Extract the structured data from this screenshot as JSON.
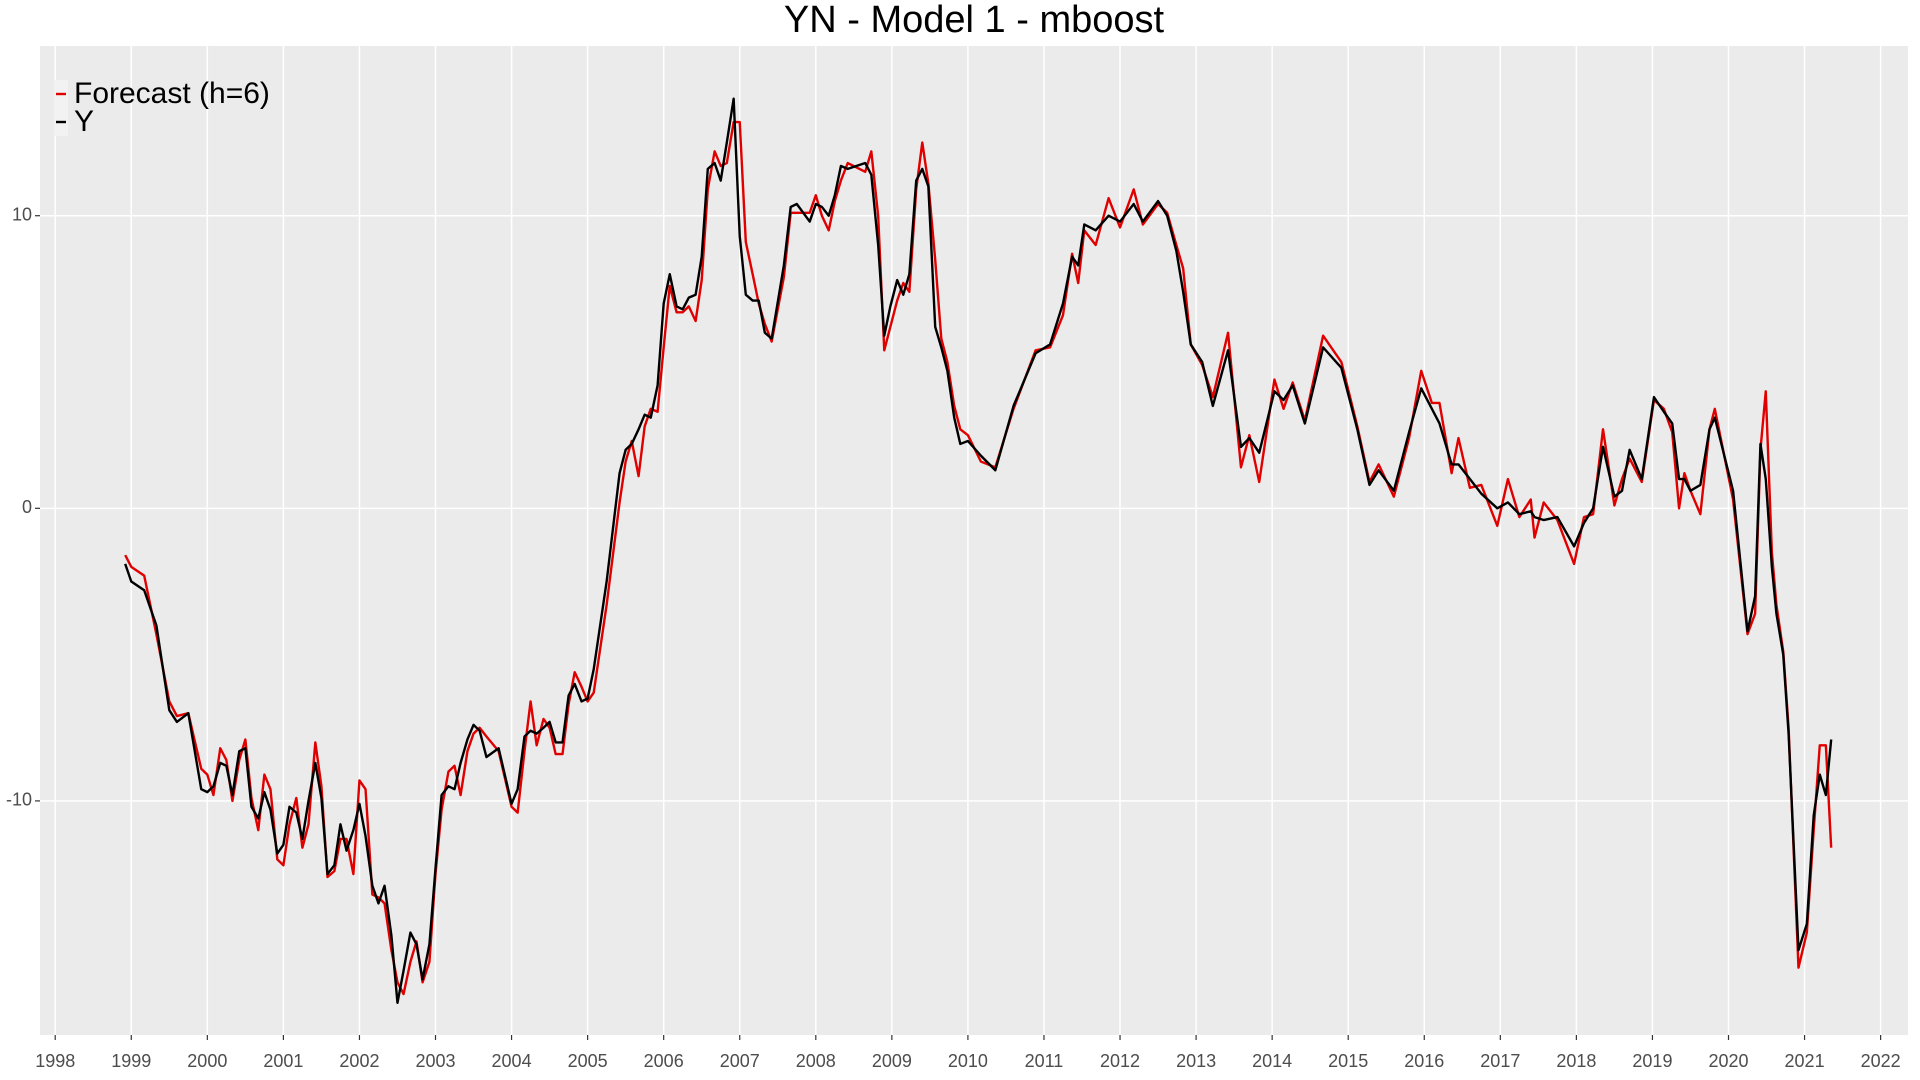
{
  "chart_data": {
    "type": "line",
    "title": "YN - Model 1 - mboost",
    "grid": true,
    "legend": "top-left",
    "background": "#ebebeb",
    "xlim": [
      1997.8,
      2022.36
    ],
    "xticks": [
      1998,
      1999,
      2000,
      2001,
      2002,
      2003,
      2004,
      2005,
      2006,
      2007,
      2008,
      2009,
      2010,
      2011,
      2012,
      2013,
      2014,
      2015,
      2016,
      2017,
      2018,
      2019,
      2020,
      2021,
      2022
    ],
    "ylim": [
      -18,
      15.8
    ],
    "yticks": [
      -10,
      0,
      10
    ],
    "x": [
      1998.92,
      1999.0,
      1999.17,
      1999.33,
      1999.5,
      1999.6,
      1999.75,
      1999.92,
      2000.0,
      2000.08,
      2000.17,
      2000.25,
      2000.33,
      2000.42,
      2000.5,
      2000.58,
      2000.67,
      2000.75,
      2000.83,
      2000.92,
      2001.0,
      2001.08,
      2001.17,
      2001.25,
      2001.33,
      2001.42,
      2001.5,
      2001.58,
      2001.67,
      2001.75,
      2001.83,
      2001.92,
      2002.0,
      2002.08,
      2002.17,
      2002.25,
      2002.33,
      2002.42,
      2002.5,
      2002.58,
      2002.67,
      2002.75,
      2002.83,
      2002.92,
      2003.0,
      2003.08,
      2003.17,
      2003.25,
      2003.33,
      2003.42,
      2003.5,
      2003.58,
      2003.67,
      2003.83,
      2004.0,
      2004.08,
      2004.17,
      2004.25,
      2004.33,
      2004.42,
      2004.5,
      2004.58,
      2004.67,
      2004.75,
      2004.83,
      2004.92,
      2005.0,
      2005.08,
      2005.25,
      2005.42,
      2005.5,
      2005.58,
      2005.67,
      2005.75,
      2005.83,
      2005.92,
      2006.0,
      2006.08,
      2006.17,
      2006.25,
      2006.33,
      2006.42,
      2006.5,
      2006.58,
      2006.67,
      2006.75,
      2006.83,
      2006.92,
      2007.0,
      2007.08,
      2007.17,
      2007.25,
      2007.33,
      2007.42,
      2007.58,
      2007.67,
      2007.75,
      2007.92,
      2008.0,
      2008.08,
      2008.17,
      2008.25,
      2008.33,
      2008.42,
      2008.65,
      2008.73,
      2008.82,
      2008.9,
      2008.98,
      2009.07,
      2009.15,
      2009.23,
      2009.32,
      2009.4,
      2009.48,
      2009.57,
      2009.65,
      2009.73,
      2009.82,
      2009.9,
      2010.0,
      2010.17,
      2010.36,
      2010.6,
      2010.89,
      2011.08,
      2011.25,
      2011.37,
      2011.45,
      2011.53,
      2011.68,
      2011.85,
      2012.0,
      2012.18,
      2012.3,
      2012.5,
      2012.62,
      2012.74,
      2012.83,
      2012.93,
      2013.08,
      2013.22,
      2013.42,
      2013.59,
      2013.7,
      2013.83,
      2014.03,
      2014.15,
      2014.27,
      2014.43,
      2014.67,
      2014.91,
      2015.12,
      2015.28,
      2015.4,
      2015.6,
      2015.8,
      2015.96,
      2016.1,
      2016.2,
      2016.36,
      2016.45,
      2016.6,
      2016.75,
      2016.96,
      2017.1,
      2017.25,
      2017.4,
      2017.45,
      2017.57,
      2017.75,
      2017.97,
      2018.1,
      2018.22,
      2018.35,
      2018.5,
      2018.6,
      2018.7,
      2018.86,
      2019.02,
      2019.15,
      2019.26,
      2019.35,
      2019.42,
      2019.5,
      2019.63,
      2019.75,
      2019.82,
      2020.06,
      2020.25,
      2020.35,
      2020.42,
      2020.49,
      2020.57,
      2020.63,
      2020.72,
      2020.79,
      2020.92,
      2021.03,
      2021.12,
      2021.2,
      2021.28,
      2021.35
    ],
    "series": [
      {
        "name": "Forecast (h=6)",
        "color": "#e00000",
        "values": [
          -1.6,
          -2.0,
          -2.3,
          -4.3,
          -6.6,
          -7.1,
          -7.0,
          -8.9,
          -9.1,
          -9.8,
          -8.2,
          -8.6,
          -10.0,
          -8.6,
          -7.9,
          -9.9,
          -11.0,
          -9.1,
          -9.6,
          -12.0,
          -12.2,
          -10.8,
          -9.9,
          -11.6,
          -10.8,
          -8.0,
          -9.5,
          -12.6,
          -12.4,
          -11.3,
          -11.3,
          -12.5,
          -9.3,
          -9.6,
          -13.2,
          -13.3,
          -13.5,
          -15.1,
          -16.2,
          -16.6,
          -15.5,
          -14.8,
          -16.2,
          -15.5,
          -12.5,
          -10.3,
          -9.0,
          -8.8,
          -9.8,
          -8.3,
          -7.7,
          -7.5,
          -7.8,
          -8.3,
          -10.2,
          -10.4,
          -8.3,
          -6.6,
          -8.1,
          -7.2,
          -7.5,
          -8.4,
          -8.4,
          -6.7,
          -5.6,
          -6.1,
          -6.6,
          -6.3,
          -3.3,
          0.2,
          1.6,
          2.3,
          1.1,
          2.8,
          3.4,
          3.3,
          5.5,
          7.6,
          6.7,
          6.7,
          6.9,
          6.4,
          7.8,
          10.9,
          12.2,
          11.7,
          11.8,
          13.2,
          13.2,
          9.1,
          8.0,
          7.0,
          6.3,
          5.7,
          7.9,
          10.1,
          10.1,
          10.1,
          10.7,
          10.0,
          9.5,
          10.5,
          11.2,
          11.8,
          11.5,
          12.2,
          10.0,
          5.4,
          6.2,
          7.1,
          7.7,
          7.4,
          10.9,
          12.5,
          11.1,
          8.5,
          5.8,
          5.0,
          3.5,
          2.7,
          2.5,
          1.6,
          1.4,
          3.4,
          5.4,
          5.5,
          6.6,
          8.7,
          7.7,
          9.5,
          9.0,
          10.6,
          9.6,
          10.9,
          9.7,
          10.4,
          10.1,
          9.0,
          8.2,
          5.6,
          4.9,
          3.8,
          6.0,
          1.4,
          2.5,
          0.9,
          4.4,
          3.4,
          4.3,
          3.0,
          5.9,
          5.0,
          2.8,
          0.9,
          1.5,
          0.4,
          2.4,
          4.7,
          3.6,
          3.6,
          1.2,
          2.4,
          0.7,
          0.8,
          -0.6,
          1.0,
          -0.3,
          0.3,
          -1.0,
          0.2,
          -0.4,
          -1.9,
          -0.3,
          -0.2,
          2.7,
          0.1,
          1.0,
          1.7,
          0.9,
          3.7,
          3.4,
          2.6,
          0.0,
          1.2,
          0.6,
          -0.2,
          2.7,
          3.4,
          0.3,
          -4.3,
          -3.6,
          2.0,
          4.0,
          -1.5,
          -3.3,
          -4.9,
          -7.5,
          -15.7,
          -14.5,
          -11.0,
          -8.1,
          -8.1,
          -11.6
        ]
      },
      {
        "name": "Y",
        "color": "#000000",
        "values": [
          -1.9,
          -2.5,
          -2.8,
          -4.0,
          -6.9,
          -7.3,
          -7.0,
          -9.6,
          -9.7,
          -9.5,
          -8.7,
          -8.8,
          -9.8,
          -8.3,
          -8.2,
          -10.2,
          -10.6,
          -9.7,
          -10.3,
          -11.8,
          -11.5,
          -10.2,
          -10.4,
          -11.3,
          -10.0,
          -8.7,
          -9.9,
          -12.5,
          -12.2,
          -10.8,
          -11.7,
          -11.0,
          -10.1,
          -11.2,
          -12.9,
          -13.5,
          -12.9,
          -14.6,
          -16.9,
          -15.8,
          -14.5,
          -14.9,
          -16.1,
          -14.9,
          -12.3,
          -9.8,
          -9.5,
          -9.6,
          -8.7,
          -7.9,
          -7.4,
          -7.6,
          -8.5,
          -8.2,
          -10.1,
          -9.6,
          -7.8,
          -7.6,
          -7.7,
          -7.5,
          -7.3,
          -8.0,
          -8.0,
          -6.4,
          -6.0,
          -6.6,
          -6.5,
          -5.5,
          -2.5,
          1.2,
          2.0,
          2.2,
          2.7,
          3.2,
          3.1,
          4.2,
          7.0,
          8.0,
          6.9,
          6.8,
          7.2,
          7.3,
          8.6,
          11.6,
          11.8,
          11.2,
          12.5,
          14.0,
          9.3,
          7.3,
          7.1,
          7.1,
          6.0,
          5.8,
          8.3,
          10.3,
          10.4,
          9.8,
          10.4,
          10.3,
          10.0,
          10.7,
          11.7,
          11.6,
          11.8,
          11.4,
          9.0,
          5.9,
          6.9,
          7.8,
          7.3,
          8.0,
          11.2,
          11.6,
          11.0,
          6.2,
          5.5,
          4.7,
          3.1,
          2.2,
          2.3,
          1.8,
          1.3,
          3.5,
          5.3,
          5.6,
          7.0,
          8.6,
          8.3,
          9.7,
          9.5,
          10.0,
          9.8,
          10.4,
          9.8,
          10.5,
          10.0,
          8.8,
          7.4,
          5.6,
          5.0,
          3.5,
          5.4,
          2.1,
          2.4,
          1.9,
          4.0,
          3.7,
          4.2,
          2.9,
          5.5,
          4.8,
          2.7,
          0.8,
          1.3,
          0.6,
          2.6,
          4.1,
          3.4,
          2.9,
          1.5,
          1.5,
          1.0,
          0.5,
          0,
          0.2,
          -0.2,
          -0.1,
          -0.3,
          -0.4,
          -0.3,
          -1.3,
          -0.5,
          0.0,
          2.1,
          0.4,
          0.6,
          2.0,
          1.0,
          3.8,
          3.3,
          2.9,
          1.0,
          1.0,
          0.6,
          0.8,
          2.7,
          3.1,
          0.6,
          -4.2,
          -3.0,
          2.2,
          1.0,
          -2.0,
          -3.6,
          -5.0,
          -7.7,
          -15.1,
          -14.2,
          -10.5,
          -9.1,
          -9.8,
          -7.9
        ]
      }
    ]
  }
}
